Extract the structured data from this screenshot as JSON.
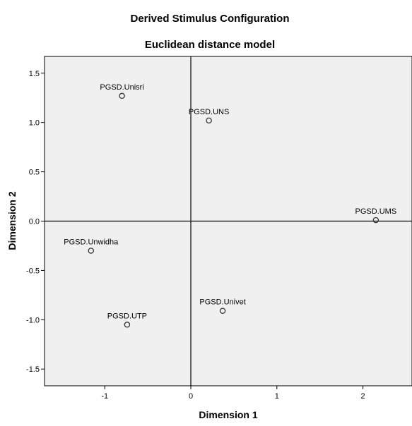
{
  "chart_data": {
    "type": "scatter",
    "title": "Derived Stimulus Configuration",
    "subtitle": "Euclidean distance model",
    "xlabel": "Dimension 1",
    "ylabel": "Dimension 2",
    "xlim": [
      -1.7,
      2.57
    ],
    "ylim": [
      -1.67,
      1.67
    ],
    "xticks": [
      -1,
      0,
      1,
      2
    ],
    "yticks": [
      1.5,
      1.0,
      0.5,
      0.0,
      -0.5,
      -1.0,
      -1.5
    ],
    "xtick_labels": [
      "-1",
      "0",
      "1",
      "2"
    ],
    "ytick_labels": [
      "1.5",
      "1.0",
      "0.5",
      "0.0",
      "-0.5",
      "-1.0",
      "-1.5"
    ],
    "grid": false,
    "reference_lines": {
      "x": 0,
      "y": 0
    },
    "plot_background": "#f0f0f0",
    "marker_color": "#333333",
    "points": [
      {
        "label": "PGSD.Unisri",
        "x": -0.8,
        "y": 1.27
      },
      {
        "label": "PGSD.UNS",
        "x": 0.21,
        "y": 1.02
      },
      {
        "label": "PGSD.UMS",
        "x": 2.15,
        "y": 0.01
      },
      {
        "label": "PGSD.Unwidha",
        "x": -1.16,
        "y": -0.3
      },
      {
        "label": "PGSD.Univet",
        "x": 0.37,
        "y": -0.91
      },
      {
        "label": "PGSD.UTP",
        "x": -0.74,
        "y": -1.05
      }
    ]
  }
}
